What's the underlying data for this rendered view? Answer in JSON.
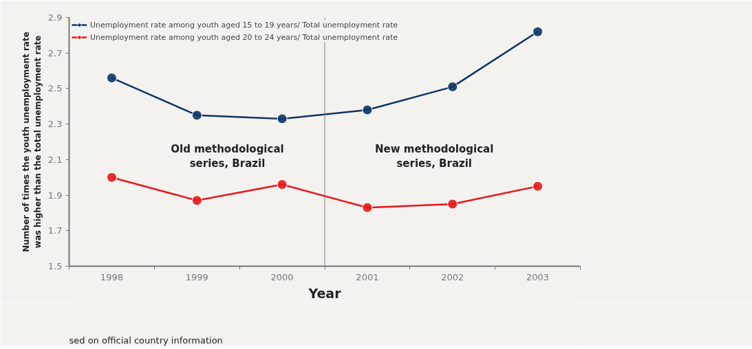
{
  "chart_data": {
    "type": "line",
    "xlabel": "Year",
    "ylabel": "Number of times the youth unemployment rate was higher than the total unemployment rate",
    "x": [
      1998,
      1999,
      2000,
      2001,
      2002,
      2003
    ],
    "xlim": [
      1997.5,
      2003.5
    ],
    "xticks": [
      1998,
      1999,
      2000,
      2001,
      2002,
      2003
    ],
    "ylim": [
      1.5,
      2.9
    ],
    "yticks": [
      1.5,
      1.7,
      1.9,
      2.1,
      2.3,
      2.5,
      2.7,
      2.9
    ],
    "series": [
      {
        "name": "Unemployment rate among youth aged 15 to 19 years/ Total unemployment rate",
        "color": "#0d3466",
        "values": [
          2.56,
          2.35,
          2.33,
          2.38,
          2.51,
          2.82
        ]
      },
      {
        "name": "Unemployment rate among youth aged 20 to 24 years/ Total unemployment rate",
        "color": "#e8161b",
        "values": [
          2.0,
          1.87,
          1.96,
          1.83,
          1.85,
          1.95
        ]
      }
    ],
    "ref_lines": [
      {
        "axis": "x",
        "value": 2000.5,
        "color": "#808080"
      }
    ],
    "annotations": [
      "Old methodological\nseries, Brazil",
      "New methodological\nseries, Brazil",
      "sed on official country information"
    ],
    "marker": "circle",
    "line_style": "solid",
    "grid": false,
    "legend": "top left"
  }
}
